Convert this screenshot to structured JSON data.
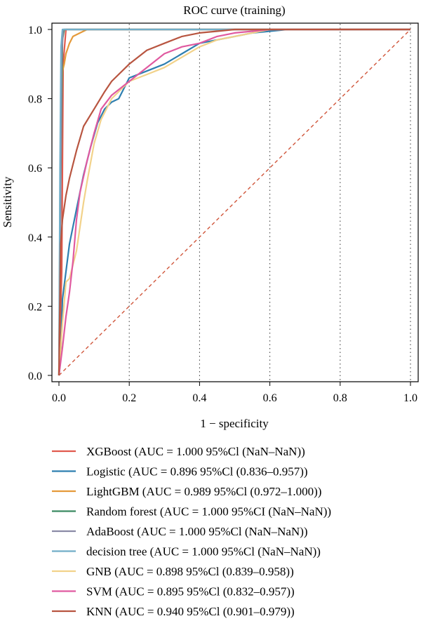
{
  "chart_data": {
    "type": "line",
    "title": "ROC curve (training)",
    "xlabel": "1 − specificity",
    "ylabel": "Sensitivity",
    "xlim": [
      0,
      1
    ],
    "ylim": [
      0,
      1
    ],
    "x_ticks": [
      "0.0",
      "0.2",
      "0.4",
      "0.6",
      "0.8",
      "1.0"
    ],
    "y_ticks": [
      "0.0",
      "0.2",
      "0.4",
      "0.6",
      "0.8",
      "1.0"
    ],
    "vertical_gridlines": [
      0.2,
      0.4,
      0.6,
      0.8,
      1.0
    ],
    "grid_style": "dotted vertical",
    "reference_line": {
      "x": [
        0,
        1
      ],
      "y": [
        0,
        1
      ],
      "color": "#d0553a",
      "style": "dashed"
    },
    "legend_position": "bottom",
    "series": [
      {
        "name": "XGBoost (AUC = 1.000 95%Cl (NaN–NaN))",
        "color": "#e05a4e",
        "x": [
          0,
          0.008,
          0.012,
          0.02,
          0.05,
          1.0
        ],
        "y": [
          0,
          0.3,
          0.9,
          1.0,
          1.0,
          1.0
        ]
      },
      {
        "name": "Logistic (AUC = 0.896 95%Cl (0.836–0.957))",
        "color": "#2e7fb0",
        "x": [
          0,
          0.005,
          0.01,
          0.02,
          0.03,
          0.05,
          0.07,
          0.09,
          0.11,
          0.13,
          0.15,
          0.17,
          0.2,
          0.25,
          0.3,
          0.35,
          0.4,
          0.45,
          0.5,
          0.55,
          0.6,
          0.65,
          1.0
        ],
        "y": [
          0,
          0.05,
          0.22,
          0.3,
          0.38,
          0.48,
          0.58,
          0.66,
          0.73,
          0.77,
          0.79,
          0.8,
          0.86,
          0.88,
          0.9,
          0.93,
          0.96,
          0.97,
          0.98,
          0.99,
          0.995,
          1.0,
          1.0
        ]
      },
      {
        "name": "LightGBM (AUC = 0.989 95%Cl (0.972–1.000))",
        "color": "#e59a3a",
        "x": [
          0,
          0.003,
          0.006,
          0.01,
          0.015,
          0.02,
          0.03,
          0.04,
          0.06,
          0.08,
          0.1,
          0.15,
          1.0
        ],
        "y": [
          0,
          0.5,
          0.75,
          0.88,
          0.9,
          0.93,
          0.96,
          0.98,
          0.99,
          1.0,
          1.0,
          1.0,
          1.0
        ]
      },
      {
        "name": "Random forest (AUC = 1.000 95%CI (NaN–NaN))",
        "color": "#3b8a62",
        "x": [
          0,
          0.005,
          0.01,
          0.015,
          0.02,
          1.0
        ],
        "y": [
          0,
          0.55,
          0.97,
          1.0,
          1.0,
          1.0
        ]
      },
      {
        "name": "AdaBoost (AUC = 1.000 95%Cl (NaN–NaN))",
        "color": "#8a8aa6",
        "x": [
          0,
          0.004,
          0.008,
          0.012,
          0.02,
          1.0
        ],
        "y": [
          0,
          0.45,
          0.93,
          1.0,
          1.0,
          1.0
        ]
      },
      {
        "name": "decision tree (AUC = 1.000 95%Cl (NaN–NaN))",
        "color": "#72aec8",
        "x": [
          0,
          0.003,
          0.006,
          0.01,
          0.015,
          1.0
        ],
        "y": [
          0,
          0.6,
          0.95,
          1.0,
          1.0,
          1.0
        ]
      },
      {
        "name": "GNB (AUC = 0.898 95%Cl (0.839–0.958))",
        "color": "#f2d28a",
        "x": [
          0,
          0.01,
          0.02,
          0.03,
          0.05,
          0.07,
          0.08,
          0.1,
          0.12,
          0.15,
          0.2,
          0.25,
          0.3,
          0.35,
          0.4,
          0.45,
          0.5,
          0.55,
          0.6,
          1.0
        ],
        "y": [
          0,
          0.15,
          0.27,
          0.28,
          0.36,
          0.5,
          0.56,
          0.67,
          0.74,
          0.8,
          0.85,
          0.87,
          0.89,
          0.92,
          0.95,
          0.97,
          0.98,
          0.99,
          1.0,
          1.0
        ]
      },
      {
        "name": "SVM (AUC = 0.895 95%Cl (0.832–0.957))",
        "color": "#e05aa0",
        "x": [
          0,
          0.01,
          0.02,
          0.03,
          0.04,
          0.05,
          0.06,
          0.08,
          0.1,
          0.12,
          0.15,
          0.2,
          0.25,
          0.3,
          0.35,
          0.4,
          0.45,
          0.5,
          0.55,
          0.6,
          1.0
        ],
        "y": [
          0,
          0.08,
          0.17,
          0.24,
          0.33,
          0.45,
          0.53,
          0.62,
          0.7,
          0.77,
          0.81,
          0.85,
          0.89,
          0.93,
          0.95,
          0.96,
          0.98,
          0.99,
          0.995,
          1.0,
          1.0
        ]
      },
      {
        "name": "KNN (AUC = 0.940 95%Cl (0.901–0.979))",
        "color": "#b85540",
        "x": [
          0,
          0.005,
          0.01,
          0.02,
          0.03,
          0.05,
          0.07,
          0.1,
          0.13,
          0.15,
          0.2,
          0.25,
          0.3,
          0.35,
          0.4,
          0.45,
          0.5,
          0.55,
          0.6,
          1.0
        ],
        "y": [
          0,
          0.38,
          0.45,
          0.52,
          0.57,
          0.65,
          0.72,
          0.77,
          0.82,
          0.85,
          0.9,
          0.94,
          0.96,
          0.98,
          0.99,
          0.995,
          1.0,
          1.0,
          1.0,
          1.0
        ]
      }
    ]
  }
}
